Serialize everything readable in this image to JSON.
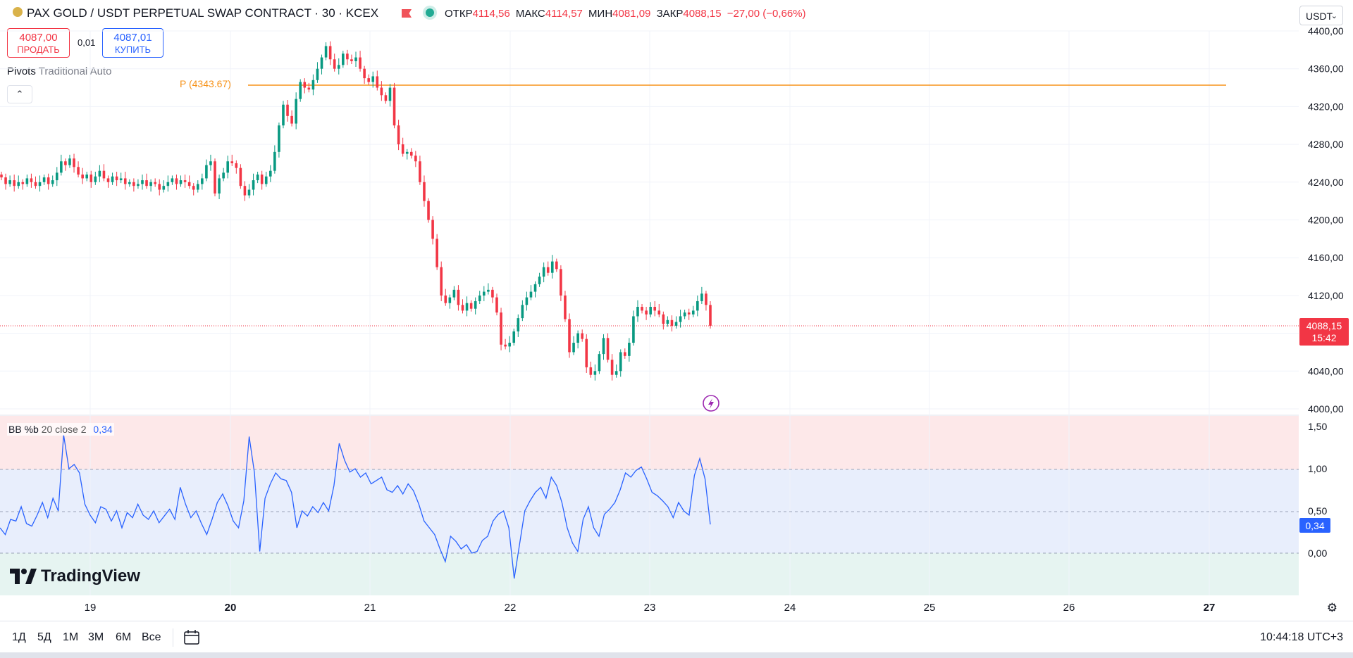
{
  "header": {
    "title": "PAX GOLD / USDT PERPETUAL SWAP CONTRACT · 30 · KCEX",
    "open_label": "ОТКР",
    "open_value": "4114,56",
    "high_label": "МАКС",
    "high_value": "4114,57",
    "low_label": "МИН",
    "low_value": "4081,09",
    "close_label": "ЗАКР",
    "close_value": "4088,15",
    "change": "−27,00 (−0,66%)",
    "currency": "USDT"
  },
  "trade": {
    "sell_price": "4087,00",
    "sell_label": "ПРОДАТЬ",
    "spread": "0,01",
    "buy_price": "4087,01",
    "buy_label": "КУПИТЬ"
  },
  "indicators": {
    "pivots_name": "Pivots",
    "pivots_params": "Traditional Auto",
    "pivot_label": "P (4343.67)",
    "bb_name": "BB %b",
    "bb_params": "20 close 2",
    "bb_value": "0,34"
  },
  "price_axis": {
    "labels": [
      "4400,00",
      "4360,00",
      "4320,00",
      "4280,00",
      "4240,00",
      "4200,00",
      "4160,00",
      "4120,00",
      "4040,00",
      "4000,00"
    ],
    "last_price": "4088,15",
    "countdown": "15:42"
  },
  "osc_axis": {
    "labels": [
      "1,50",
      "1,00",
      "0,50",
      "0,00"
    ],
    "last_value": "0,34"
  },
  "time_axis": {
    "labels": [
      "19",
      "20",
      "21",
      "22",
      "23",
      "24",
      "25",
      "26",
      "27"
    ]
  },
  "brand": "TradingView",
  "ranges": [
    "1Д",
    "5Д",
    "1М",
    "3М",
    "6М",
    "Все"
  ],
  "clock": "10:44:18 UTC+3",
  "colors": {
    "up": "#089981",
    "down": "#f23645",
    "pivot": "#f7931a",
    "bb_line": "#2962ff",
    "accent": "#2962ff"
  },
  "chart_data": {
    "type": "candlestick",
    "pivot": 4343.67,
    "ylim": [
      3990,
      4410
    ],
    "x_ticks": [
      "19",
      "20",
      "21",
      "22",
      "23",
      "24",
      "25",
      "26",
      "27"
    ],
    "close_series": [
      4245,
      4238,
      4242,
      4236,
      4240,
      4238,
      4244,
      4240,
      4236,
      4240,
      4245,
      4238,
      4242,
      4250,
      4262,
      4258,
      4265,
      4256,
      4248,
      4244,
      4248,
      4240,
      4246,
      4252,
      4244,
      4240,
      4246,
      4242,
      4244,
      4238,
      4240,
      4236,
      4238,
      4242,
      4236,
      4240,
      4238,
      4232,
      4236,
      4240,
      4244,
      4238,
      4242,
      4240,
      4236,
      4232,
      4238,
      4244,
      4258,
      4262,
      4228,
      4244,
      4250,
      4262,
      4260,
      4255,
      4236,
      4226,
      4232,
      4242,
      4248,
      4238,
      4246,
      4252,
      4272,
      4300,
      4322,
      4310,
      4302,
      4328,
      4346,
      4340,
      4338,
      4348,
      4360,
      4372,
      4384,
      4370,
      4360,
      4364,
      4376,
      4370,
      4368,
      4372,
      4360,
      4350,
      4346,
      4352,
      4340,
      4332,
      4326,
      4340,
      4300,
      4280,
      4270,
      4272,
      4268,
      4262,
      4240,
      4220,
      4200,
      4180,
      4150,
      4120,
      4112,
      4118,
      4126,
      4110,
      4104,
      4112,
      4106,
      4114,
      4120,
      4124,
      4126,
      4118,
      4102,
      4068,
      4066,
      4070,
      4082,
      4096,
      4110,
      4118,
      4124,
      4132,
      4140,
      4150,
      4144,
      4156,
      4148,
      4120,
      4095,
      4060,
      4070,
      4080,
      4074,
      4044,
      4036,
      4040,
      4058,
      4075,
      4052,
      4036,
      4040,
      4060,
      4056,
      4070,
      4098,
      4108,
      4104,
      4100,
      4108,
      4104,
      4100,
      4090,
      4094,
      4088,
      4092,
      4098,
      4102,
      4100,
      4104,
      4114,
      4122,
      4110,
      4088
    ],
    "bb_percent_b": [
      0.3,
      0.22,
      0.4,
      0.38,
      0.55,
      0.35,
      0.32,
      0.45,
      0.6,
      0.42,
      0.65,
      0.5,
      1.4,
      1.0,
      1.05,
      0.95,
      0.58,
      0.45,
      0.36,
      0.55,
      0.52,
      0.38,
      0.5,
      0.3,
      0.48,
      0.42,
      0.58,
      0.45,
      0.4,
      0.5,
      0.36,
      0.44,
      0.52,
      0.4,
      0.78,
      0.58,
      0.42,
      0.5,
      0.35,
      0.22,
      0.4,
      0.6,
      0.7,
      0.56,
      0.38,
      0.3,
      0.62,
      1.38,
      0.95,
      0.02,
      0.65,
      0.82,
      0.95,
      0.88,
      0.86,
      0.72,
      0.3,
      0.5,
      0.44,
      0.55,
      0.48,
      0.6,
      0.5,
      0.8,
      1.3,
      1.1,
      0.96,
      1.0,
      0.9,
      0.95,
      0.82,
      0.86,
      0.9,
      0.75,
      0.72,
      0.8,
      0.7,
      0.82,
      0.74,
      0.58,
      0.38,
      0.3,
      0.22,
      0.05,
      -0.1,
      0.2,
      0.14,
      0.05,
      0.1,
      0.0,
      0.02,
      0.15,
      0.2,
      0.38,
      0.46,
      0.5,
      0.3,
      -0.3,
      0.1,
      0.5,
      0.62,
      0.72,
      0.78,
      0.65,
      0.9,
      0.8,
      0.6,
      0.3,
      0.12,
      0.02,
      0.4,
      0.55,
      0.3,
      0.2,
      0.46,
      0.52,
      0.6,
      0.75,
      0.95,
      0.9,
      0.98,
      1.02,
      0.88,
      0.72,
      0.68,
      0.62,
      0.55,
      0.42,
      0.6,
      0.5,
      0.45,
      0.92,
      1.12,
      0.88,
      0.34
    ]
  }
}
